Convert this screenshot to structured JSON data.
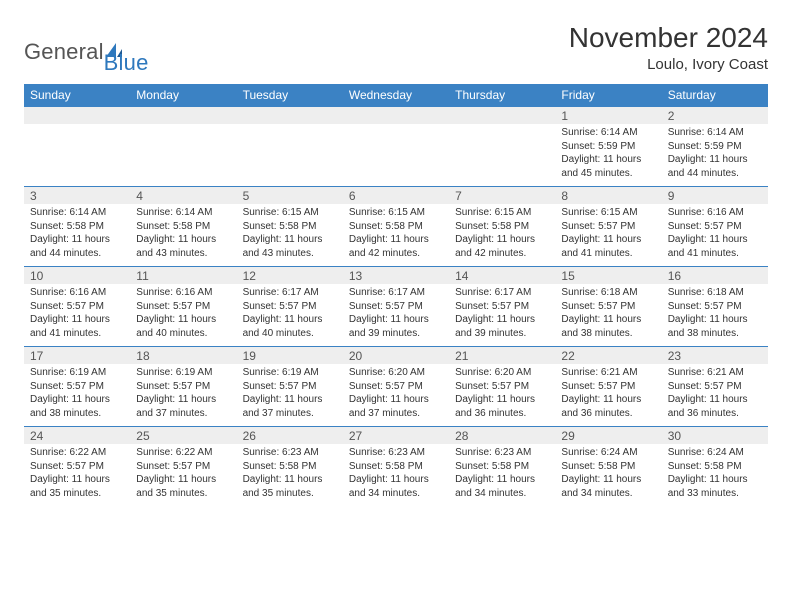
{
  "brand": {
    "part1": "General",
    "part2": "Blue"
  },
  "title": "November 2024",
  "location": "Loulo, Ivory Coast",
  "palette": {
    "header_bg": "#3b82c4",
    "header_fg": "#ffffff",
    "daynum_bg": "#eeeeee",
    "cell_border": "#3b82c4",
    "page_bg": "#ffffff",
    "text": "#333333"
  },
  "weekdays": [
    "Sunday",
    "Monday",
    "Tuesday",
    "Wednesday",
    "Thursday",
    "Friday",
    "Saturday"
  ],
  "weeks": [
    [
      null,
      null,
      null,
      null,
      null,
      {
        "n": "1",
        "sr": "Sunrise: 6:14 AM",
        "ss": "Sunset: 5:59 PM",
        "dl1": "Daylight: 11 hours",
        "dl2": "and 45 minutes."
      },
      {
        "n": "2",
        "sr": "Sunrise: 6:14 AM",
        "ss": "Sunset: 5:59 PM",
        "dl1": "Daylight: 11 hours",
        "dl2": "and 44 minutes."
      }
    ],
    [
      {
        "n": "3",
        "sr": "Sunrise: 6:14 AM",
        "ss": "Sunset: 5:58 PM",
        "dl1": "Daylight: 11 hours",
        "dl2": "and 44 minutes."
      },
      {
        "n": "4",
        "sr": "Sunrise: 6:14 AM",
        "ss": "Sunset: 5:58 PM",
        "dl1": "Daylight: 11 hours",
        "dl2": "and 43 minutes."
      },
      {
        "n": "5",
        "sr": "Sunrise: 6:15 AM",
        "ss": "Sunset: 5:58 PM",
        "dl1": "Daylight: 11 hours",
        "dl2": "and 43 minutes."
      },
      {
        "n": "6",
        "sr": "Sunrise: 6:15 AM",
        "ss": "Sunset: 5:58 PM",
        "dl1": "Daylight: 11 hours",
        "dl2": "and 42 minutes."
      },
      {
        "n": "7",
        "sr": "Sunrise: 6:15 AM",
        "ss": "Sunset: 5:58 PM",
        "dl1": "Daylight: 11 hours",
        "dl2": "and 42 minutes."
      },
      {
        "n": "8",
        "sr": "Sunrise: 6:15 AM",
        "ss": "Sunset: 5:57 PM",
        "dl1": "Daylight: 11 hours",
        "dl2": "and 41 minutes."
      },
      {
        "n": "9",
        "sr": "Sunrise: 6:16 AM",
        "ss": "Sunset: 5:57 PM",
        "dl1": "Daylight: 11 hours",
        "dl2": "and 41 minutes."
      }
    ],
    [
      {
        "n": "10",
        "sr": "Sunrise: 6:16 AM",
        "ss": "Sunset: 5:57 PM",
        "dl1": "Daylight: 11 hours",
        "dl2": "and 41 minutes."
      },
      {
        "n": "11",
        "sr": "Sunrise: 6:16 AM",
        "ss": "Sunset: 5:57 PM",
        "dl1": "Daylight: 11 hours",
        "dl2": "and 40 minutes."
      },
      {
        "n": "12",
        "sr": "Sunrise: 6:17 AM",
        "ss": "Sunset: 5:57 PM",
        "dl1": "Daylight: 11 hours",
        "dl2": "and 40 minutes."
      },
      {
        "n": "13",
        "sr": "Sunrise: 6:17 AM",
        "ss": "Sunset: 5:57 PM",
        "dl1": "Daylight: 11 hours",
        "dl2": "and 39 minutes."
      },
      {
        "n": "14",
        "sr": "Sunrise: 6:17 AM",
        "ss": "Sunset: 5:57 PM",
        "dl1": "Daylight: 11 hours",
        "dl2": "and 39 minutes."
      },
      {
        "n": "15",
        "sr": "Sunrise: 6:18 AM",
        "ss": "Sunset: 5:57 PM",
        "dl1": "Daylight: 11 hours",
        "dl2": "and 38 minutes."
      },
      {
        "n": "16",
        "sr": "Sunrise: 6:18 AM",
        "ss": "Sunset: 5:57 PM",
        "dl1": "Daylight: 11 hours",
        "dl2": "and 38 minutes."
      }
    ],
    [
      {
        "n": "17",
        "sr": "Sunrise: 6:19 AM",
        "ss": "Sunset: 5:57 PM",
        "dl1": "Daylight: 11 hours",
        "dl2": "and 38 minutes."
      },
      {
        "n": "18",
        "sr": "Sunrise: 6:19 AM",
        "ss": "Sunset: 5:57 PM",
        "dl1": "Daylight: 11 hours",
        "dl2": "and 37 minutes."
      },
      {
        "n": "19",
        "sr": "Sunrise: 6:19 AM",
        "ss": "Sunset: 5:57 PM",
        "dl1": "Daylight: 11 hours",
        "dl2": "and 37 minutes."
      },
      {
        "n": "20",
        "sr": "Sunrise: 6:20 AM",
        "ss": "Sunset: 5:57 PM",
        "dl1": "Daylight: 11 hours",
        "dl2": "and 37 minutes."
      },
      {
        "n": "21",
        "sr": "Sunrise: 6:20 AM",
        "ss": "Sunset: 5:57 PM",
        "dl1": "Daylight: 11 hours",
        "dl2": "and 36 minutes."
      },
      {
        "n": "22",
        "sr": "Sunrise: 6:21 AM",
        "ss": "Sunset: 5:57 PM",
        "dl1": "Daylight: 11 hours",
        "dl2": "and 36 minutes."
      },
      {
        "n": "23",
        "sr": "Sunrise: 6:21 AM",
        "ss": "Sunset: 5:57 PM",
        "dl1": "Daylight: 11 hours",
        "dl2": "and 36 minutes."
      }
    ],
    [
      {
        "n": "24",
        "sr": "Sunrise: 6:22 AM",
        "ss": "Sunset: 5:57 PM",
        "dl1": "Daylight: 11 hours",
        "dl2": "and 35 minutes."
      },
      {
        "n": "25",
        "sr": "Sunrise: 6:22 AM",
        "ss": "Sunset: 5:57 PM",
        "dl1": "Daylight: 11 hours",
        "dl2": "and 35 minutes."
      },
      {
        "n": "26",
        "sr": "Sunrise: 6:23 AM",
        "ss": "Sunset: 5:58 PM",
        "dl1": "Daylight: 11 hours",
        "dl2": "and 35 minutes."
      },
      {
        "n": "27",
        "sr": "Sunrise: 6:23 AM",
        "ss": "Sunset: 5:58 PM",
        "dl1": "Daylight: 11 hours",
        "dl2": "and 34 minutes."
      },
      {
        "n": "28",
        "sr": "Sunrise: 6:23 AM",
        "ss": "Sunset: 5:58 PM",
        "dl1": "Daylight: 11 hours",
        "dl2": "and 34 minutes."
      },
      {
        "n": "29",
        "sr": "Sunrise: 6:24 AM",
        "ss": "Sunset: 5:58 PM",
        "dl1": "Daylight: 11 hours",
        "dl2": "and 34 minutes."
      },
      {
        "n": "30",
        "sr": "Sunrise: 6:24 AM",
        "ss": "Sunset: 5:58 PM",
        "dl1": "Daylight: 11 hours",
        "dl2": "and 33 minutes."
      }
    ]
  ]
}
